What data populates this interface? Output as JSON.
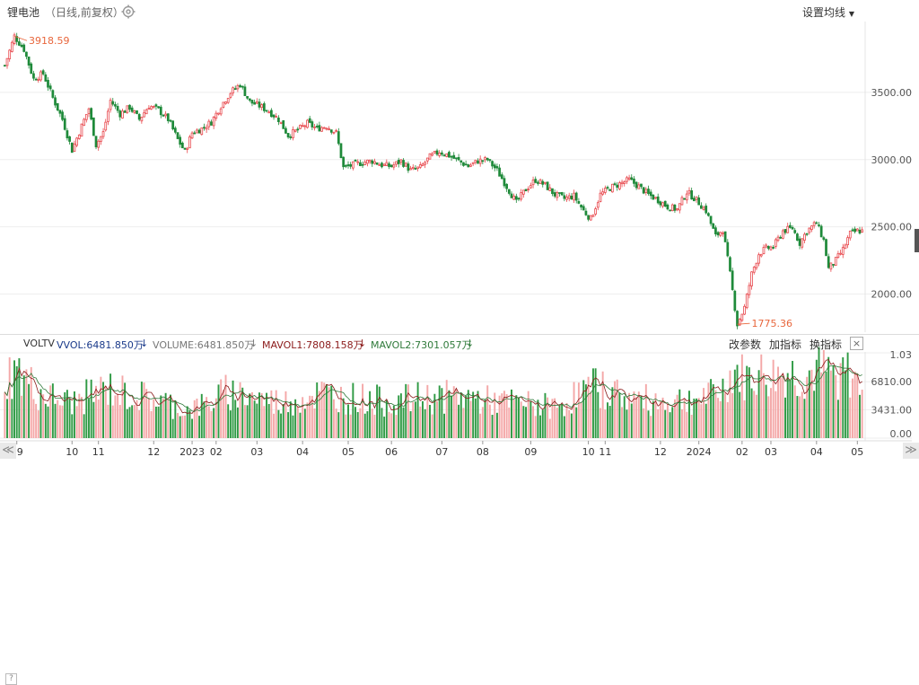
{
  "header": {
    "name": "锂电池",
    "sub": "（日线,前复权）",
    "set_ma": "设置均线"
  },
  "vol_header": {
    "q": "?",
    "ind": "VOLTV",
    "vvol": "VVOL:6481.850万",
    "volume": "VOLUME:6481.850万",
    "mavol1": "MAVOL1:7808.158万",
    "mavol2": "MAVOL2:7301.057万",
    "btn_params": "改参数",
    "btn_add": "加指标",
    "btn_switch": "换指标",
    "close": "×"
  },
  "colors": {
    "up": "#e8484d",
    "down": "#1f8a3a",
    "vol_up": "#f4a8a8",
    "vol_down": "#2f9a44",
    "ma1": "#8b1a1a",
    "ma2": "#2f7a3a",
    "annotation": "#e8663c",
    "grid": "#eeeeee"
  },
  "nav": {
    "left": "≪",
    "right": "≫"
  },
  "chart_data": [
    {
      "type": "candlestick",
      "title": "锂电池",
      "y_ticks": [
        "3500.00",
        "3000.00",
        "2500.00",
        "2000.00"
      ],
      "y_tick_values": [
        3500,
        3000,
        2500,
        2000
      ],
      "ylim": [
        1730,
        4000
      ],
      "x_ticks": [
        "09",
        "10",
        "11",
        "12",
        "2023",
        "02",
        "03",
        "04",
        "05",
        "06",
        "07",
        "08",
        "09",
        "10",
        "11",
        "12",
        "2024",
        "02",
        "03",
        "04",
        "05"
      ],
      "x_tick_index": [
        5,
        28,
        39,
        62,
        78,
        88,
        105,
        124,
        143,
        161,
        182,
        199,
        219,
        243,
        250,
        273,
        289,
        307,
        319,
        338,
        355
      ],
      "annotations": [
        {
          "label": "3918.59",
          "index": 4,
          "value": 3918.59
        },
        {
          "label": "1775.36",
          "index": 305,
          "value": 1775.36
        }
      ],
      "anchors": [
        [
          0,
          3700
        ],
        [
          4,
          3918.59
        ],
        [
          8,
          3820
        ],
        [
          12,
          3600
        ],
        [
          16,
          3640
        ],
        [
          20,
          3460
        ],
        [
          24,
          3300
        ],
        [
          28,
          3070
        ],
        [
          32,
          3250
        ],
        [
          35,
          3380
        ],
        [
          38,
          3110
        ],
        [
          41,
          3200
        ],
        [
          44,
          3440
        ],
        [
          48,
          3340
        ],
        [
          52,
          3390
        ],
        [
          56,
          3300
        ],
        [
          60,
          3400
        ],
        [
          64,
          3370
        ],
        [
          68,
          3300
        ],
        [
          72,
          3150
        ],
        [
          75,
          3060
        ],
        [
          78,
          3200
        ],
        [
          82,
          3230
        ],
        [
          86,
          3280
        ],
        [
          90,
          3400
        ],
        [
          94,
          3500
        ],
        [
          98,
          3560
        ],
        [
          102,
          3430
        ],
        [
          106,
          3400
        ],
        [
          110,
          3360
        ],
        [
          114,
          3300
        ],
        [
          118,
          3180
        ],
        [
          122,
          3220
        ],
        [
          126,
          3270
        ],
        [
          130,
          3230
        ],
        [
          134,
          3250
        ],
        [
          138,
          3200
        ],
        [
          141,
          2940
        ],
        [
          145,
          2960
        ],
        [
          149,
          2980
        ],
        [
          153,
          2990
        ],
        [
          157,
          2960
        ],
        [
          161,
          2950
        ],
        [
          165,
          2990
        ],
        [
          169,
          2920
        ],
        [
          173,
          2940
        ],
        [
          177,
          3020
        ],
        [
          181,
          3060
        ],
        [
          185,
          3030
        ],
        [
          189,
          2990
        ],
        [
          193,
          2950
        ],
        [
          197,
          2990
        ],
        [
          201,
          3000
        ],
        [
          205,
          2920
        ],
        [
          209,
          2800
        ],
        [
          213,
          2680
        ],
        [
          217,
          2780
        ],
        [
          221,
          2850
        ],
        [
          225,
          2810
        ],
        [
          229,
          2740
        ],
        [
          233,
          2710
        ],
        [
          237,
          2730
        ],
        [
          241,
          2620
        ],
        [
          244,
          2560
        ],
        [
          248,
          2740
        ],
        [
          252,
          2790
        ],
        [
          256,
          2820
        ],
        [
          260,
          2850
        ],
        [
          264,
          2800
        ],
        [
          268,
          2740
        ],
        [
          272,
          2700
        ],
        [
          276,
          2650
        ],
        [
          280,
          2630
        ],
        [
          284,
          2760
        ],
        [
          288,
          2700
        ],
        [
          292,
          2620
        ],
        [
          296,
          2430
        ],
        [
          299,
          2480
        ],
        [
          302,
          2150
        ],
        [
          305,
          1775.36
        ],
        [
          308,
          1900
        ],
        [
          311,
          2150
        ],
        [
          314,
          2300
        ],
        [
          317,
          2340
        ],
        [
          320,
          2350
        ],
        [
          324,
          2470
        ],
        [
          328,
          2490
        ],
        [
          331,
          2380
        ],
        [
          334,
          2470
        ],
        [
          338,
          2530
        ],
        [
          341,
          2400
        ],
        [
          343,
          2190
        ],
        [
          346,
          2250
        ],
        [
          349,
          2330
        ],
        [
          352,
          2450
        ],
        [
          355,
          2470
        ]
      ]
    },
    {
      "type": "bar",
      "title": "VOLTV",
      "series": [
        {
          "name": "VOLUME",
          "unit": "万"
        },
        {
          "name": "MAVOL1",
          "unit": "万"
        },
        {
          "name": "MAVOL2",
          "unit": "万"
        }
      ],
      "y_ticks": [
        "6810.00",
        "3431.00",
        "0.00"
      ],
      "y_tick_values": [
        6810,
        3431,
        0
      ],
      "y_top_label": "1.03",
      "ylim": [
        0,
        10300
      ],
      "anchors": [
        [
          0,
          8000
        ],
        [
          6,
          8200
        ],
        [
          14,
          5800
        ],
        [
          24,
          4700
        ],
        [
          30,
          4600
        ],
        [
          36,
          5600
        ],
        [
          44,
          6300
        ],
        [
          52,
          5500
        ],
        [
          60,
          5100
        ],
        [
          68,
          4400
        ],
        [
          76,
          3600
        ],
        [
          84,
          4300
        ],
        [
          92,
          5800
        ],
        [
          100,
          5600
        ],
        [
          108,
          4900
        ],
        [
          116,
          4500
        ],
        [
          124,
          5200
        ],
        [
          132,
          5700
        ],
        [
          140,
          5200
        ],
        [
          150,
          5000
        ],
        [
          160,
          4600
        ],
        [
          170,
          5000
        ],
        [
          180,
          5200
        ],
        [
          190,
          5300
        ],
        [
          200,
          4800
        ],
        [
          210,
          4500
        ],
        [
          220,
          4300
        ],
        [
          230,
          3900
        ],
        [
          238,
          5500
        ],
        [
          246,
          6500
        ],
        [
          252,
          6000
        ],
        [
          260,
          5100
        ],
        [
          268,
          4800
        ],
        [
          276,
          4700
        ],
        [
          284,
          5000
        ],
        [
          292,
          5100
        ],
        [
          298,
          5800
        ],
        [
          304,
          8600
        ],
        [
          308,
          7400
        ],
        [
          314,
          8000
        ],
        [
          320,
          7700
        ],
        [
          326,
          8200
        ],
        [
          332,
          7500
        ],
        [
          338,
          8400
        ],
        [
          344,
          7900
        ],
        [
          350,
          8200
        ],
        [
          355,
          6900
        ]
      ]
    }
  ]
}
